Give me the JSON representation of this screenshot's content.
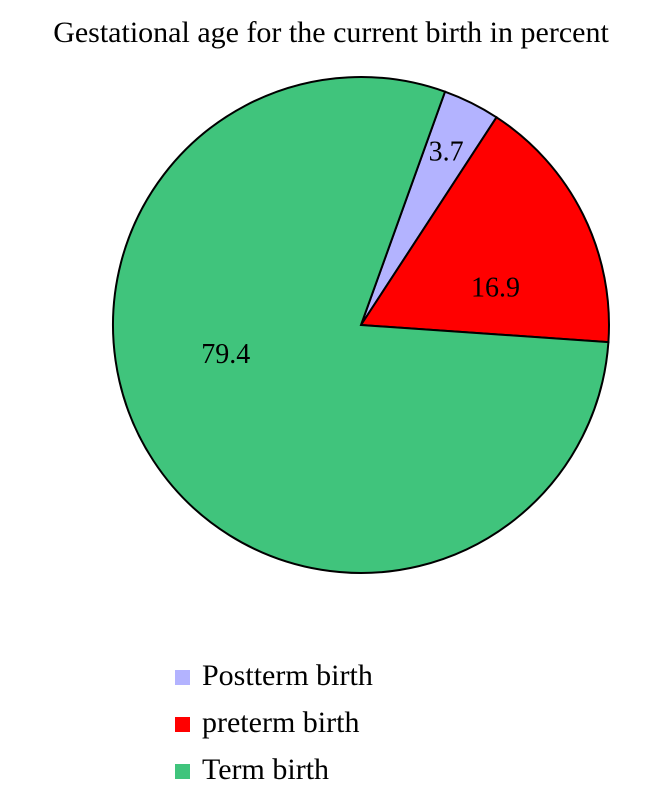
{
  "chart_data": {
    "type": "pie",
    "title": "Gestational age for the current birth in percent",
    "series": [
      {
        "name": "Postterm birth",
        "color": "#b3b3ff",
        "values": [
          3.7
        ]
      },
      {
        "name": "preterm birth",
        "color": "#ff0000",
        "values": [
          16.9
        ]
      },
      {
        "name": "Term birth",
        "color": "#40c47c",
        "values": [
          79.4
        ]
      }
    ]
  }
}
